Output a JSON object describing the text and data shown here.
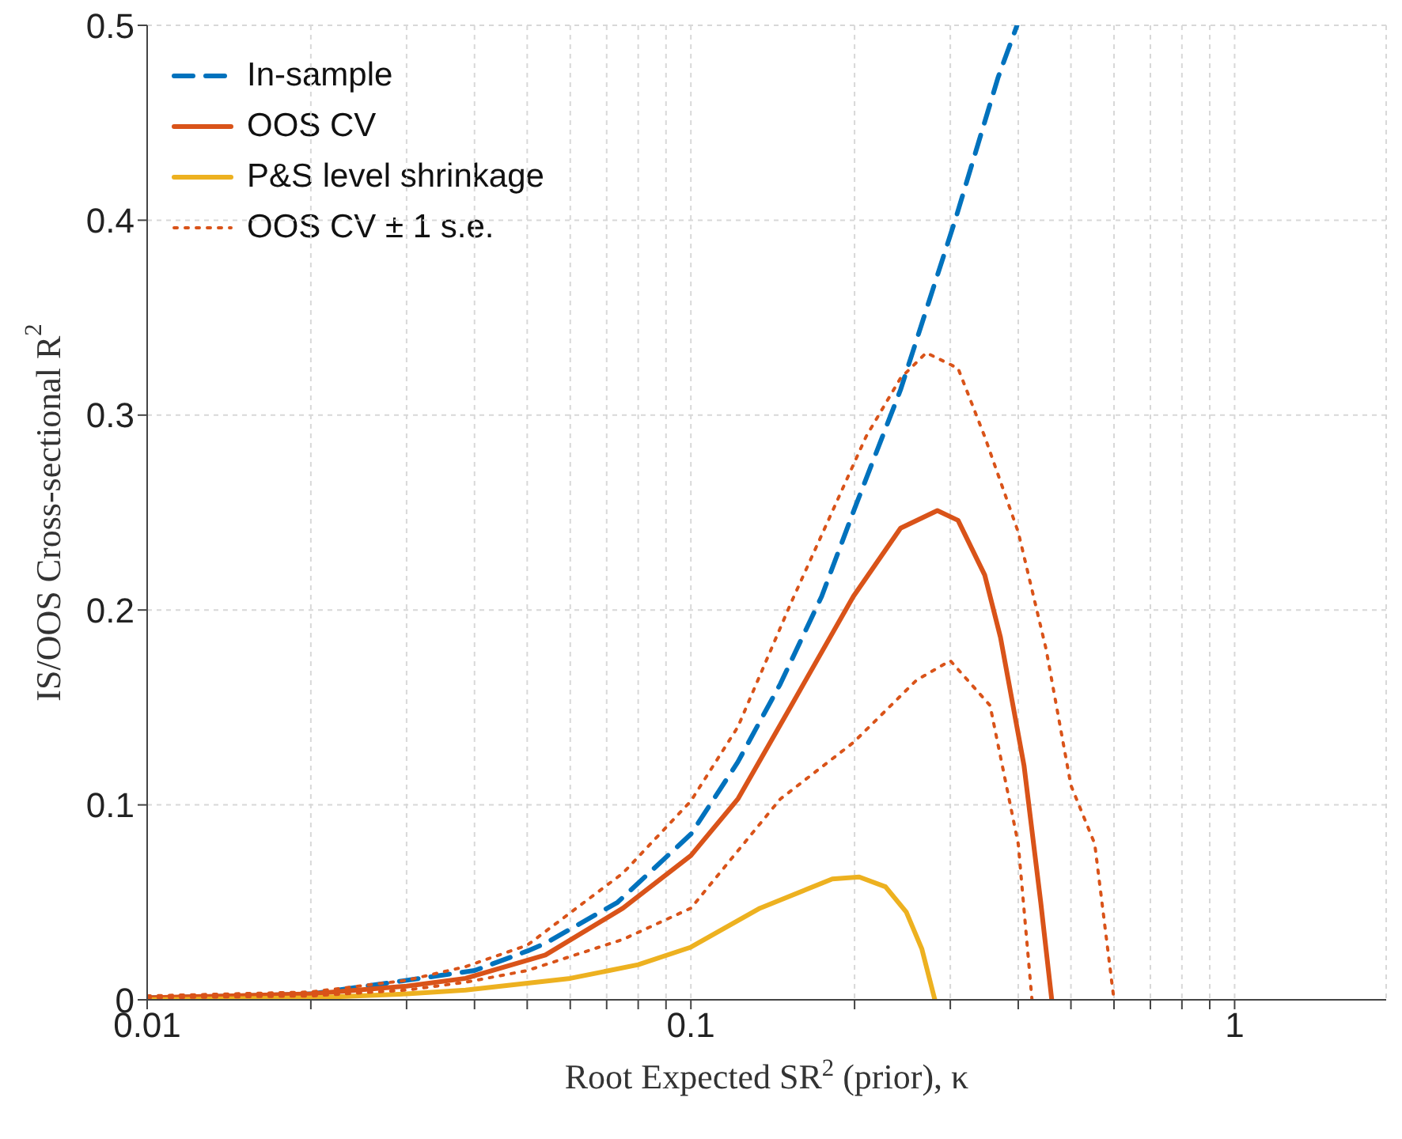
{
  "chart_data": {
    "type": "line",
    "xlabel": "Root Expected SR$^{2}$ (prior), κ",
    "ylabel": "IS/OOS Cross-sectional R$^{2}$",
    "log": "x",
    "xlim": [
      0.01,
      1.9
    ],
    "xticks": [
      0.01,
      {
        "value": 0.02,
        "label": null
      },
      {
        "value": 0.03,
        "label": null
      },
      {
        "value": 0.04,
        "label": null
      },
      {
        "value": 0.05,
        "label": null
      },
      {
        "value": 0.06,
        "label": null
      },
      {
        "value": 0.07,
        "label": null
      },
      {
        "value": 0.08,
        "label": null
      },
      {
        "value": 0.09,
        "label": null
      },
      0.1,
      {
        "value": 0.2,
        "label": null
      },
      {
        "value": 0.3,
        "label": null
      },
      {
        "value": 0.4,
        "label": null
      },
      {
        "value": 0.5,
        "label": null
      },
      {
        "value": 0.6,
        "label": null
      },
      {
        "value": 0.7,
        "label": null
      },
      {
        "value": 0.8,
        "label": null
      },
      {
        "value": 0.9,
        "label": null
      },
      1
    ],
    "ylim": [
      0,
      0.5
    ],
    "yticks": [
      0,
      0.1,
      0.2,
      0.3,
      0.4,
      0.5
    ],
    "grid": true,
    "legend": "top left",
    "series": [
      {
        "name": "In-sample",
        "color": "#0072bd",
        "line_style": "dashed",
        "x": [
          0.01,
          0.015,
          0.02,
          0.03,
          0.04,
          0.05,
          0.054,
          0.0733,
          0.1,
          0.122,
          0.146,
          0.174,
          0.2,
          0.243,
          0.307,
          0.367,
          0.398
        ],
        "values": [
          0.001,
          0.002,
          0.003,
          0.01,
          0.015,
          0.025,
          0.029,
          0.05,
          0.085,
          0.122,
          0.162,
          0.207,
          0.252,
          0.313,
          0.401,
          0.473,
          0.5
        ]
      },
      {
        "name": "OOS CV",
        "color": "#d95319",
        "line_style": "solid",
        "x": [
          0.01,
          0.02,
          0.03,
          0.0385,
          0.054,
          0.075,
          0.1,
          0.122,
          0.153,
          0.199,
          0.243,
          0.284,
          0.31,
          0.347,
          0.371,
          0.41,
          0.44,
          0.461
        ],
        "values": [
          0.001,
          0.003,
          0.007,
          0.011,
          0.023,
          0.047,
          0.074,
          0.103,
          0.151,
          0.207,
          0.242,
          0.251,
          0.246,
          0.218,
          0.186,
          0.12,
          0.05,
          0
        ]
      },
      {
        "name": "P&S level shrinkage",
        "color": "#edb120",
        "line_style": "solid",
        "x": [
          0.01,
          0.02,
          0.03,
          0.0385,
          0.06,
          0.08,
          0.1,
          0.134,
          0.182,
          0.204,
          0.228,
          0.249,
          0.266,
          0.281
        ],
        "values": [
          0,
          0.001,
          0.003,
          0.005,
          0.011,
          0.018,
          0.027,
          0.047,
          0.062,
          0.063,
          0.058,
          0.045,
          0.026,
          0
        ]
      },
      {
        "name": "OOS CV ± 1 s.e.",
        "color": "#d95319",
        "line_style": "dotted",
        "x": [
          0.01,
          0.02,
          0.03,
          0.0385,
          0.05,
          0.075,
          0.1,
          0.122,
          0.153,
          0.183,
          0.21,
          0.243,
          0.271,
          0.31,
          0.347,
          0.4,
          0.45,
          0.5,
          0.553,
          0.6
        ],
        "values": [
          0.002,
          0.004,
          0.01,
          0.017,
          0.028,
          0.065,
          0.102,
          0.14,
          0.204,
          0.252,
          0.289,
          0.319,
          0.332,
          0.324,
          0.289,
          0.24,
          0.18,
          0.11,
          0.08,
          0
        ]
      },
      {
        "color": "#d95319",
        "line_style": "dotted",
        "x": [
          0.01,
          0.02,
          0.03,
          0.0385,
          0.05,
          0.075,
          0.1,
          0.146,
          0.199,
          0.26,
          0.3,
          0.355,
          0.4,
          0.424
        ],
        "values": [
          0.001,
          0.002,
          0.005,
          0.009,
          0.015,
          0.031,
          0.047,
          0.103,
          0.132,
          0.164,
          0.174,
          0.151,
          0.08,
          0
        ]
      }
    ]
  }
}
